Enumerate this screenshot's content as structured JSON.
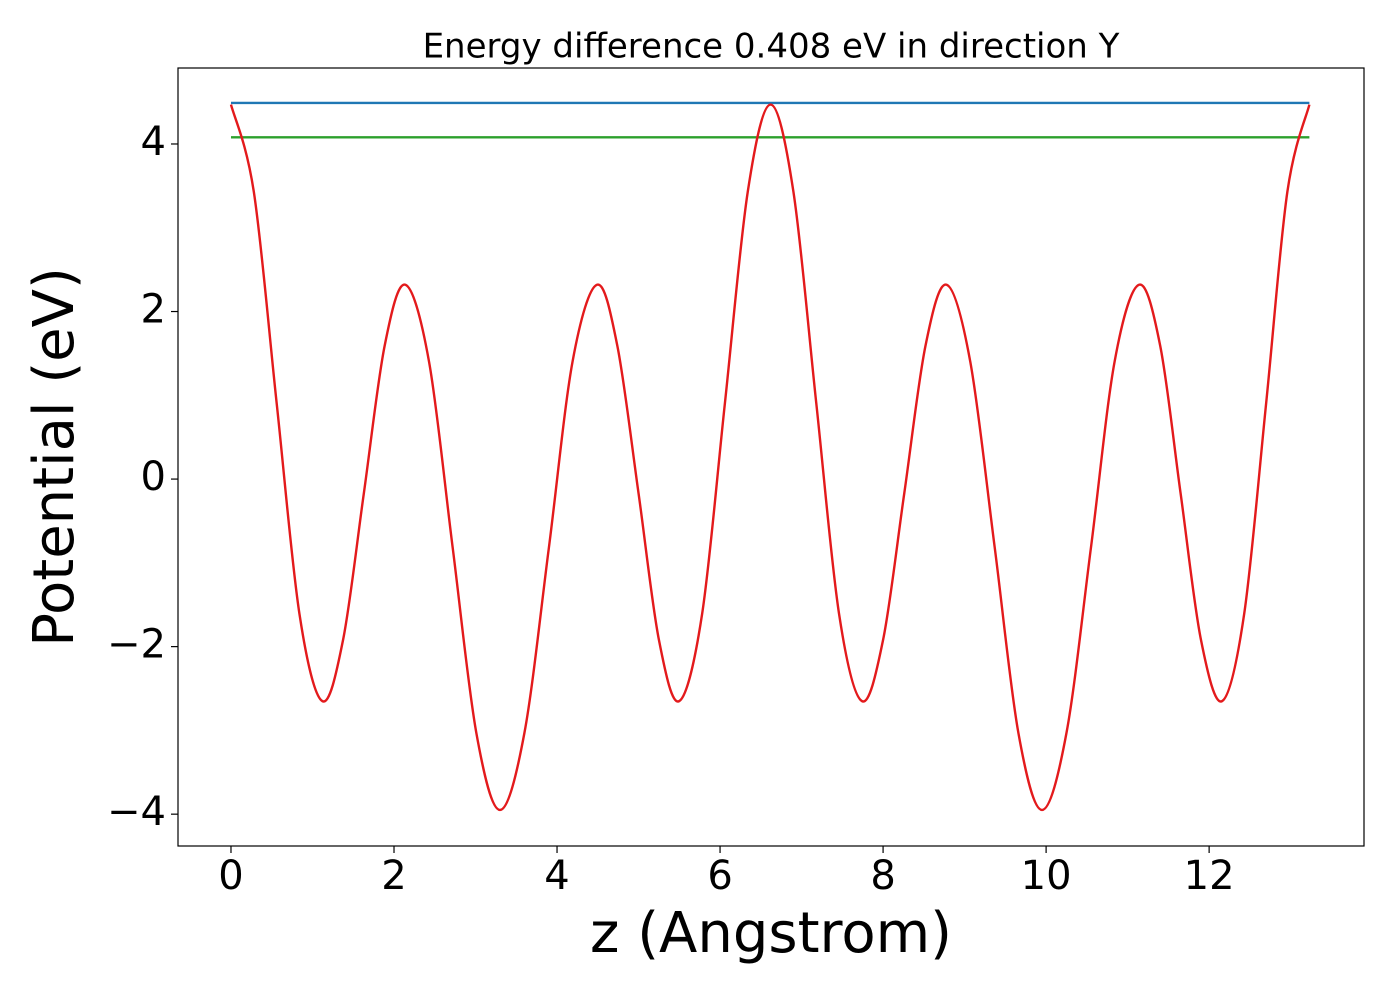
{
  "chart_data": {
    "type": "line",
    "title": "Energy difference 0.408 eV in direction Y",
    "xlabel": "z (Angstrom)",
    "ylabel": "Potential (eV)",
    "xlim": [
      -0.65,
      13.9
    ],
    "ylim": [
      -4.38,
      4.907
    ],
    "xticks": [
      0,
      2,
      4,
      6,
      8,
      10,
      12
    ],
    "yticks": [
      {
        "value": -4,
        "label": "−4"
      },
      {
        "value": -2,
        "label": "−2"
      },
      0,
      2,
      4
    ],
    "series": [
      {
        "color": "#1f77b4",
        "x": [
          0,
          13.23
        ],
        "values": [
          4.49,
          4.49
        ]
      },
      {
        "color": "#2ca02c",
        "x": [
          0,
          13.23
        ],
        "values": [
          4.08,
          4.08
        ]
      },
      {
        "color": "#e31a1c",
        "x": [
          0,
          0.28,
          0.56,
          0.84,
          1.12,
          1.375,
          1.63,
          1.885,
          2.14,
          2.43,
          2.72,
          3.01,
          3.3,
          3.6,
          3.9,
          4.19,
          4.49,
          4.74,
          5.0,
          5.25,
          5.5,
          5.78,
          6.06,
          6.34,
          6.62,
          6.9,
          7.18,
          7.46,
          7.74,
          8.0,
          8.26,
          8.52,
          8.78,
          9.07,
          9.37,
          9.66,
          9.95,
          10.25,
          10.55,
          10.84,
          11.14,
          11.4,
          11.65,
          11.9,
          12.16,
          12.43,
          12.7,
          12.96,
          13.23
        ],
        "values": [
          4.47,
          3.43,
          0.91,
          -1.61,
          -2.65,
          -1.92,
          -0.17,
          1.59,
          2.32,
          1.4,
          -0.82,
          -3.03,
          -3.95,
          -3.03,
          -0.82,
          1.4,
          2.32,
          1.59,
          -0.17,
          -1.92,
          -2.65,
          -1.61,
          0.91,
          3.43,
          4.47,
          3.43,
          0.91,
          -1.61,
          -2.65,
          -1.92,
          -0.17,
          1.59,
          2.32,
          1.4,
          -0.82,
          -3.03,
          -3.95,
          -3.03,
          -0.82,
          1.4,
          2.32,
          1.59,
          -0.17,
          -1.92,
          -2.65,
          -1.61,
          0.91,
          3.43,
          4.47
        ]
      }
    ]
  }
}
